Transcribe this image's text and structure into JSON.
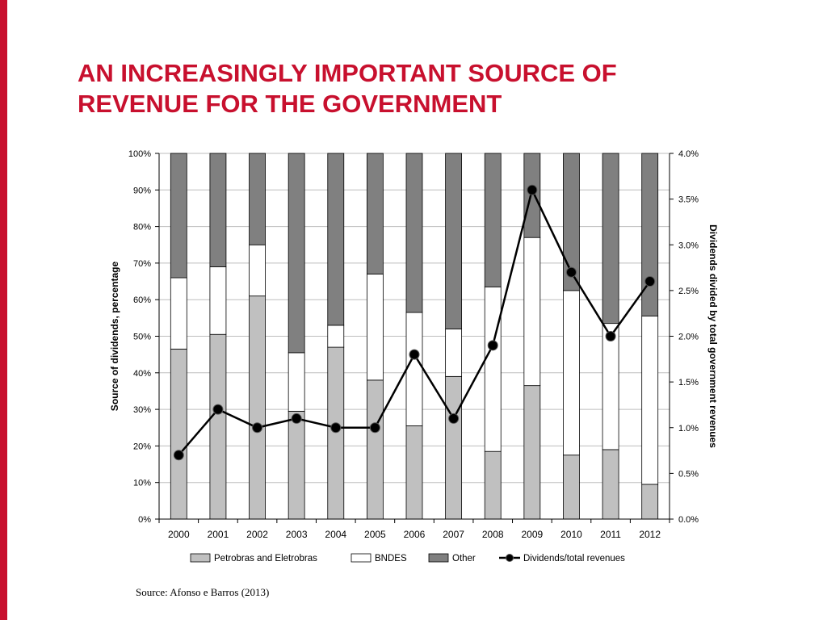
{
  "slide": {
    "title_line1": "AN INCREASINGLY IMPORTANT SOURCE OF",
    "title_line2": "REVENUE FOR THE GOVERNMENT",
    "source": "Source: Afonso e Barros (2013)"
  },
  "colors": {
    "accent": "#c8102e",
    "petrobras": "#c0c0c0",
    "bndes": "#ffffff",
    "other": "#808080",
    "line": "#000000"
  },
  "chart_data": {
    "type": "bar",
    "stacked": true,
    "categories": [
      "2000",
      "2001",
      "2002",
      "2003",
      "2004",
      "2005",
      "2006",
      "2007",
      "2008",
      "2009",
      "2010",
      "2011",
      "2012"
    ],
    "series": [
      {
        "name": "Petrobras and Eletrobras",
        "type": "bar",
        "axis": "left",
        "values": [
          46.5,
          50.5,
          61,
          29.5,
          47,
          38,
          25.5,
          39,
          18.5,
          36.5,
          17.5,
          19,
          9.5
        ]
      },
      {
        "name": "BNDES",
        "type": "bar",
        "axis": "left",
        "values": [
          19.5,
          18.5,
          14,
          16,
          6,
          29,
          31,
          13,
          45,
          40.5,
          45,
          34.5,
          46
        ]
      },
      {
        "name": "Other",
        "type": "bar",
        "axis": "left",
        "values": [
          34,
          31,
          25,
          54.5,
          47,
          33,
          43.5,
          48,
          36.5,
          23,
          37.5,
          46.5,
          44.5
        ]
      },
      {
        "name": "Dividends/total revenues",
        "type": "line",
        "axis": "right",
        "values": [
          0.7,
          1.2,
          1.0,
          1.1,
          1.0,
          1.0,
          1.8,
          1.1,
          1.9,
          3.6,
          2.7,
          2.0,
          2.6
        ]
      }
    ],
    "ylabel": "Source of dividends, percentage",
    "y2label": "Dividends divided by total government revenues",
    "ylim": [
      0,
      100
    ],
    "y2lim": [
      0,
      4.0
    ],
    "yticks": [
      "0%",
      "10%",
      "20%",
      "30%",
      "40%",
      "50%",
      "60%",
      "70%",
      "80%",
      "90%",
      "100%"
    ],
    "y2ticks": [
      "0.0%",
      "0.5%",
      "1.0%",
      "1.5%",
      "2.0%",
      "2.5%",
      "3.0%",
      "3.5%",
      "4.0%"
    ],
    "legend_position": "bottom",
    "grid": true
  }
}
